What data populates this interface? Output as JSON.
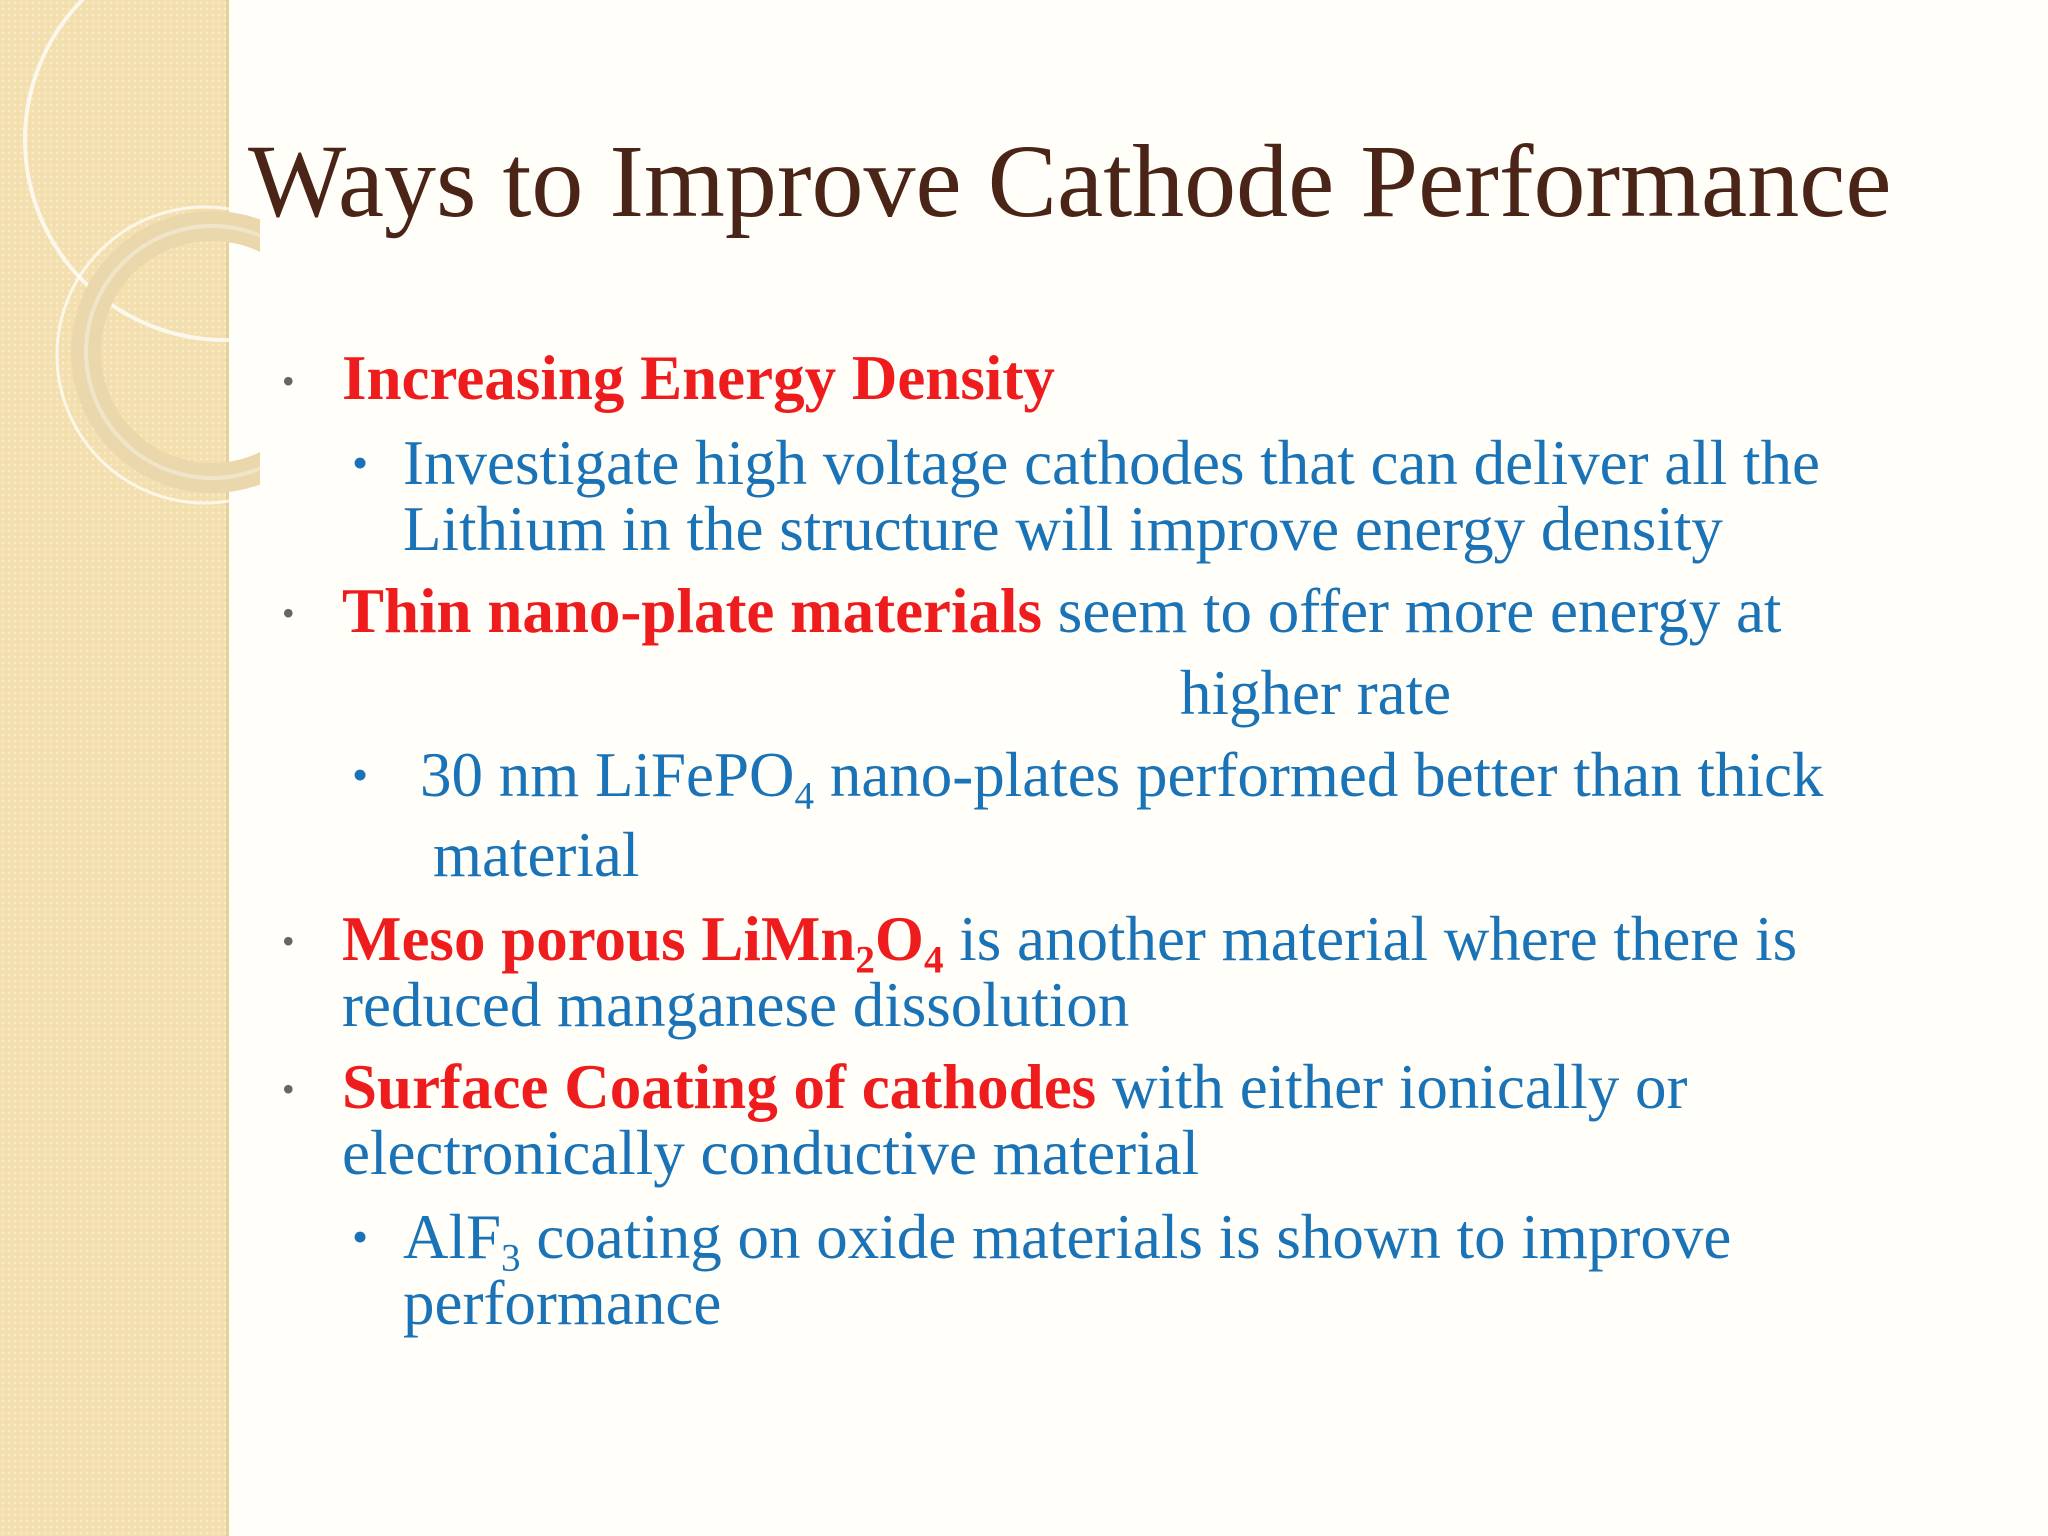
{
  "slide": {
    "title": "Ways to Improve Cathode Performance",
    "bullet_glyph": "•",
    "b1": {
      "heading": "Increasing Energy Density"
    },
    "b1_1": {
      "line1": "Investigate  high voltage cathodes that can deliver all the",
      "line2": "Lithium in the structure will improve energy density"
    },
    "b2": {
      "heading": "Thin nano-plate materials",
      "rest": " seem to offer more energy at",
      "line2": "higher rate"
    },
    "b2_1": {
      "pre": "30 nm LiFePO",
      "sub": "4",
      "post": " nano-plates performed better than thick",
      "line2": "material"
    },
    "b3": {
      "h_pre": "Meso porous LiMn",
      "h_sub1": "2",
      "h_mid": "O",
      "h_sub2": "4",
      "rest": " is another material where there is",
      "line2": "reduced manganese dissolution"
    },
    "b4": {
      "heading": "Surface Coating of cathodes",
      "rest": " with either ionically or",
      "line2": "electronically conductive material"
    },
    "b4_1": {
      "pre": "AlF",
      "sub": "3",
      "post": " coating on oxide materials is shown to improve",
      "line2": "performance"
    }
  },
  "colors": {
    "title": "#4b2418",
    "body_text": "#1a73b6",
    "emphasis": "#ee1c1c",
    "left_band": "#f3dfae"
  }
}
